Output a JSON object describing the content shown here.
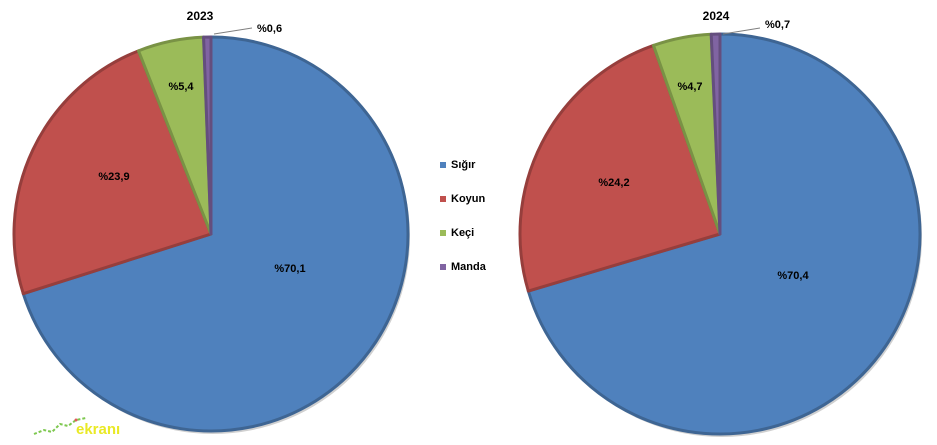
{
  "chart_data": [
    {
      "type": "pie",
      "title": "2023",
      "slices": [
        {
          "name": "Sığır",
          "value": 70.1,
          "label": "%70,1"
        },
        {
          "name": "Koyun",
          "value": 23.9,
          "label": "%23,9"
        },
        {
          "name": "Keçi",
          "value": 5.4,
          "label": "%5,4"
        },
        {
          "name": "Manda",
          "value": 0.6,
          "label": "%0,6"
        }
      ]
    },
    {
      "type": "pie",
      "title": "2024",
      "slices": [
        {
          "name": "Sığır",
          "value": 70.4,
          "label": "%70,4"
        },
        {
          "name": "Koyun",
          "value": 24.2,
          "label": "%24,2"
        },
        {
          "name": "Keçi",
          "value": 4.7,
          "label": "%4,7"
        },
        {
          "name": "Manda",
          "value": 0.7,
          "label": "%0,7"
        }
      ]
    }
  ],
  "legend": {
    "placement": "center",
    "items": [
      {
        "label": "Sığır",
        "color": "#4f81bd"
      },
      {
        "label": "Koyun",
        "color": "#c0504d"
      },
      {
        "label": "Keçi",
        "color": "#9bbb59"
      },
      {
        "label": "Manda",
        "color": "#8064a2"
      }
    ]
  },
  "colors": {
    "Sığır": "#4f81bd",
    "Koyun": "#c0504d",
    "Keçi": "#9bbb59",
    "Manda": "#8064a2"
  },
  "watermark": {
    "text": "ekranı"
  }
}
